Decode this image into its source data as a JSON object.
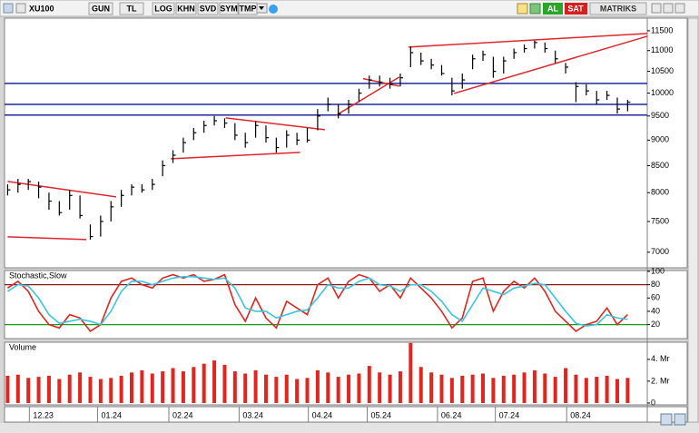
{
  "toolbar": {
    "symbol": "XU100",
    "buttons": [
      "GUN",
      "TL",
      "LOG",
      "KHN",
      "SVD",
      "SYM",
      "TMP"
    ],
    "buy": "AL",
    "sell": "SAT",
    "brand": "MATRIKS"
  },
  "chart_data": [
    {
      "type": "hlc",
      "log_scale": true,
      "color": "#000000",
      "xlim": [
        -0.3,
        61.9
      ],
      "ylim": [
        6760,
        11830
      ],
      "yticks": [
        7000,
        7500,
        8000,
        8500,
        9000,
        9500,
        10000,
        10500,
        11000,
        11500
      ],
      "xticks": [
        {
          "value": 2.1,
          "label": "12.23"
        },
        {
          "value": 8.7,
          "label": "01.24"
        },
        {
          "value": 15.6,
          "label": "02.24"
        },
        {
          "value": 22.4,
          "label": "03.24"
        },
        {
          "value": 29.1,
          "label": "04.24"
        },
        {
          "value": 34.8,
          "label": "05.24"
        },
        {
          "value": 41.6,
          "label": "06.24"
        },
        {
          "value": 47.2,
          "label": "07.24"
        },
        {
          "value": 54.1,
          "label": "08.24"
        }
      ],
      "high": [
        8150,
        8250,
        8250,
        8200,
        8000,
        7850,
        8050,
        7950,
        7450,
        7600,
        7850,
        8050,
        8150,
        8150,
        8250,
        8600,
        8800,
        9050,
        9250,
        9400,
        9500,
        9450,
        9350,
        9150,
        9400,
        9300,
        9050,
        9200,
        9150,
        9250,
        9650,
        9900,
        9750,
        9850,
        10100,
        10400,
        10400,
        10350,
        10450,
        11100,
        10950,
        10800,
        10650,
        10350,
        10450,
        10900,
        11000,
        10850,
        10850,
        11050,
        11150,
        11250,
        11200,
        11000,
        10700,
        10250,
        10200,
        10050,
        10050,
        9900,
        9850
      ],
      "low": [
        7950,
        8000,
        8050,
        7900,
        7700,
        7600,
        7700,
        7550,
        7200,
        7250,
        7500,
        7750,
        7950,
        8000,
        8050,
        8300,
        8550,
        8750,
        9000,
        9150,
        9300,
        9250,
        9000,
        8850,
        9050,
        8950,
        8750,
        8850,
        8900,
        8950,
        9200,
        9600,
        9450,
        9550,
        9800,
        10100,
        10150,
        10100,
        10150,
        10600,
        10650,
        10550,
        10400,
        9950,
        10100,
        10550,
        10750,
        10350,
        10450,
        10800,
        10950,
        11050,
        10950,
        10700,
        10450,
        9800,
        9950,
        9750,
        9850,
        9550,
        9600
      ],
      "close": [
        8050,
        8150,
        8200,
        8100,
        7850,
        7650,
        7950,
        7600,
        7250,
        7500,
        7750,
        7950,
        8100,
        8050,
        8150,
        8500,
        8700,
        8950,
        9150,
        9300,
        9400,
        9350,
        9100,
        8950,
        9300,
        9050,
        8850,
        9100,
        9000,
        9000,
        9500,
        9750,
        9550,
        9750,
        10000,
        10300,
        10250,
        10200,
        10350,
        10950,
        10750,
        10650,
        10450,
        10050,
        10300,
        10800,
        10900,
        10500,
        10750,
        10950,
        11050,
        11200,
        11050,
        10800,
        10600,
        10150,
        10050,
        9850,
        9950,
        9650,
        9800
      ],
      "hlines": {
        "color": "#1f2a99",
        "values": [
          10220,
          9750,
          9520
        ]
      },
      "trendlines": [
        {
          "color": "#e0262b",
          "x": [
            0,
            10.5
          ],
          "y": [
            8204,
            7925
          ]
        },
        {
          "color": "#e0262b",
          "x": [
            0,
            7.6
          ],
          "y": [
            7247,
            7202
          ]
        },
        {
          "color": "#e0262b",
          "x": [
            21.1,
            30.7
          ],
          "y": [
            9460,
            9212
          ]
        },
        {
          "color": "#e0262b",
          "x": [
            15.8,
            28.3
          ],
          "y": [
            8632,
            8756
          ]
        },
        {
          "color": "#e0262b",
          "x": [
            31.8,
            37.9
          ],
          "y": [
            9518,
            10366
          ]
        },
        {
          "color": "#e0262b",
          "x": [
            34.4,
            37.9
          ],
          "y": [
            10330,
            10158
          ]
        },
        {
          "color": "#e0262b",
          "x": [
            38.8,
            61.9
          ],
          "y": [
            11086,
            11430
          ]
        },
        {
          "color": "#e0262b",
          "x": [
            43.2,
            61.9
          ],
          "y": [
            9993,
            11360
          ]
        }
      ]
    },
    {
      "type": "line",
      "title": "Stochastic,Slow",
      "xlim": [
        -0.3,
        61.9
      ],
      "ylim": [
        -1,
        101.3
      ],
      "yticks": [
        20,
        40,
        60,
        80,
        100
      ],
      "hlines": [
        {
          "value": 80,
          "color": "#8b1a1a"
        },
        {
          "value": 20,
          "color": "#1a9c1a"
        }
      ],
      "series": [
        {
          "color": "#e0261e",
          "values": [
            75,
            85,
            70,
            40,
            20,
            15,
            35,
            30,
            10,
            20,
            60,
            85,
            90,
            80,
            75,
            90,
            95,
            90,
            95,
            85,
            88,
            95,
            50,
            25,
            60,
            30,
            15,
            55,
            45,
            35,
            80,
            90,
            60,
            85,
            95,
            90,
            70,
            80,
            60,
            90,
            75,
            60,
            40,
            15,
            30,
            85,
            90,
            40,
            70,
            85,
            75,
            90,
            70,
            40,
            25,
            10,
            20,
            25,
            45,
            20,
            35
          ]
        },
        {
          "color": "#39c6e0",
          "values": [
            70,
            80,
            78,
            60,
            35,
            22,
            25,
            28,
            25,
            20,
            40,
            70,
            85,
            85,
            80,
            85,
            90,
            92,
            92,
            90,
            88,
            90,
            75,
            45,
            40,
            40,
            30,
            35,
            40,
            42,
            60,
            80,
            75,
            75,
            85,
            90,
            80,
            78,
            70,
            80,
            80,
            70,
            55,
            35,
            25,
            50,
            75,
            70,
            65,
            75,
            78,
            82,
            80,
            60,
            40,
            22,
            18,
            20,
            35,
            30,
            28
          ]
        }
      ]
    },
    {
      "type": "bar",
      "title": "Volume",
      "color": "#e0261e",
      "xlim": [
        -0.3,
        61.9
      ],
      "ylim": [
        -0.17,
        5.57
      ],
      "yticks": [
        0,
        {
          "value": 2,
          "label": "2. Mr"
        },
        {
          "value": 4,
          "label": "4. Mr"
        }
      ],
      "values": [
        2.5,
        2.6,
        2.3,
        2.4,
        2.5,
        2.2,
        2.6,
        2.8,
        2.4,
        2.2,
        2.3,
        2.5,
        2.8,
        3.0,
        2.7,
        2.9,
        3.2,
        2.9,
        3.3,
        3.6,
        3.9,
        3.5,
        2.9,
        2.7,
        3.0,
        2.6,
        2.4,
        2.6,
        2.2,
        2.3,
        3.0,
        2.8,
        2.4,
        2.6,
        2.7,
        3.4,
        2.8,
        2.6,
        2.9,
        5.5,
        3.3,
        2.8,
        2.6,
        2.3,
        2.5,
        2.6,
        2.7,
        2.3,
        2.5,
        2.6,
        2.8,
        3.0,
        2.7,
        2.4,
        3.2,
        2.6,
        2.3,
        2.4,
        2.5,
        2.2,
        2.3
      ]
    }
  ]
}
